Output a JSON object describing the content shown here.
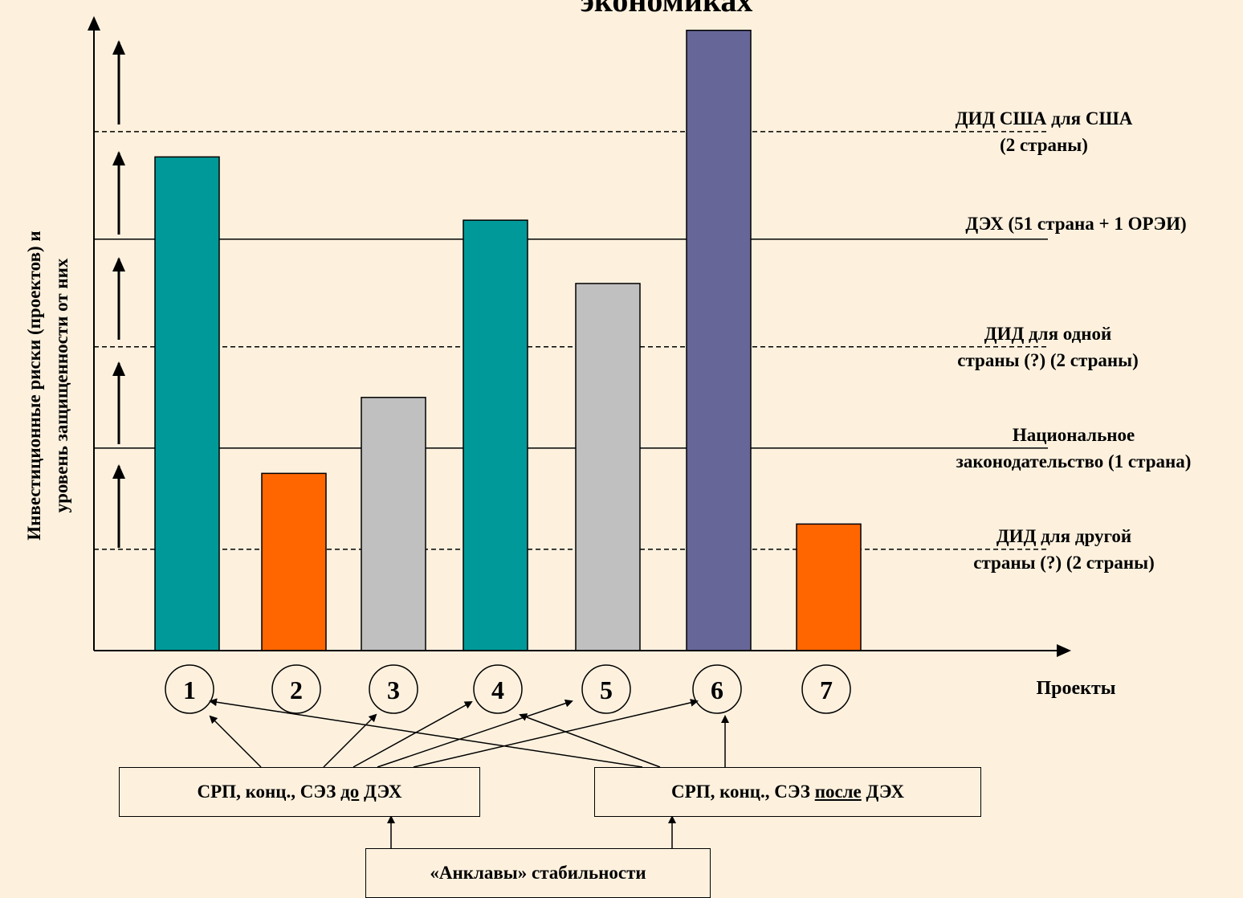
{
  "title": "экономиках",
  "chart_data": {
    "type": "bar",
    "categories": [
      "1",
      "2",
      "3",
      "4",
      "5",
      "6",
      "7"
    ],
    "values": [
      7.8,
      2.8,
      4.0,
      6.8,
      5.8,
      9.8,
      2.0
    ],
    "colors": [
      "#009999",
      "#ff6600",
      "#c0c0c0",
      "#009999",
      "#c0c0c0",
      "#666699",
      "#ff6600"
    ],
    "ylim": [
      0,
      10
    ],
    "ylabel_line1": "Инвестиционные риски (проектов) и",
    "ylabel_line2": "уровень защищенности от них",
    "xlabel": "Проекты",
    "levels": [
      {
        "style": "dashed",
        "value": 8.2,
        "label_lines": [
          "ДИД США для США",
          "(2 страны)"
        ]
      },
      {
        "style": "solid",
        "value": 6.5,
        "label_lines": [
          "ДЭХ (51 страна + 1 ОРЭИ)"
        ]
      },
      {
        "style": "dashed",
        "value": 4.8,
        "label_lines": [
          "ДИД для одной",
          "страны (?)  (2 страны)"
        ]
      },
      {
        "style": "solid",
        "value": 3.2,
        "label_lines": [
          "Национальное",
          "законодательство  (1 страна)"
        ]
      },
      {
        "style": "dashed",
        "value": 1.6,
        "label_lines": [
          "ДИД для другой",
          "страны (?)  (2 страны)"
        ]
      }
    ]
  },
  "boxes": {
    "before": {
      "pre": "СРП, конц., СЭЗ ",
      "u": "до",
      "post": " ДЭХ"
    },
    "after": {
      "pre": "СРП, конц., СЭЗ ",
      "u": "после",
      "post": " ДЭХ"
    },
    "enclaves": "«Анклавы» стабильности"
  },
  "colors": {
    "background": "#fdf1de",
    "teal": "#009999",
    "orange": "#ff6600",
    "gray": "#c0c0c0",
    "purple": "#666699"
  }
}
